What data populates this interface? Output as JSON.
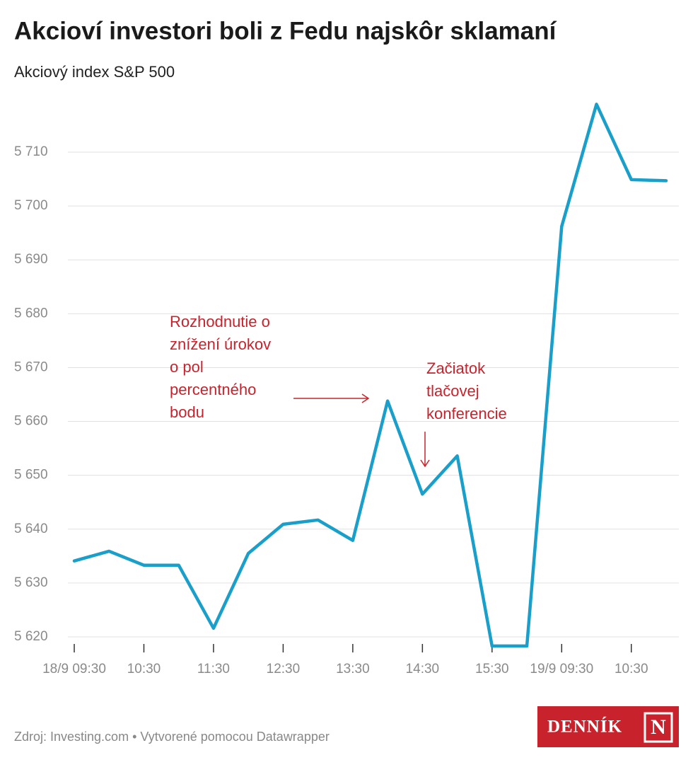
{
  "chart_data": {
    "type": "line",
    "title": "Akcioví investori boli z Fedu najskôr sklamaní",
    "subtitle": "Akciový index S&P 500",
    "categories": [
      "18/9 09:30",
      null,
      "10:30",
      null,
      "11:30",
      null,
      "12:30",
      null,
      "13:30",
      null,
      "14:30",
      null,
      "15:30",
      null,
      "19/9 09:30",
      null,
      "10:30",
      null
    ],
    "series": [
      {
        "color": "#1a9fcb",
        "values": [
          5634.1,
          5635.9,
          5633.3,
          5633.3,
          5621.6,
          5635.5,
          5640.9,
          5641.7,
          5637.9,
          5663.8,
          5646.5,
          5653.6,
          5618.3,
          5618.3,
          5696.2,
          5718.9,
          5704.9,
          5704.7
        ]
      }
    ],
    "ylim": [
      5618,
      5720
    ],
    "yticks": [
      {
        "value": 5620,
        "label": "5 620"
      },
      {
        "value": 5630,
        "label": "5 630"
      },
      {
        "value": 5640,
        "label": "5 640"
      },
      {
        "value": 5650,
        "label": "5 650"
      },
      {
        "value": 5660,
        "label": "5 660"
      },
      {
        "value": 5670,
        "label": "5 670"
      },
      {
        "value": 5680,
        "label": "5 680"
      },
      {
        "value": 5690,
        "label": "5 690"
      },
      {
        "value": 5700,
        "label": "5 700"
      },
      {
        "value": 5710,
        "label": "5 710"
      }
    ],
    "grid": true,
    "annotations": [
      {
        "lines": [
          "Rozhodnutie o",
          "znížení úrokov",
          "o pol",
          "percentného",
          "bodu"
        ],
        "color": "#c8232c"
      },
      {
        "lines": [
          "Začiatok",
          "tlačovej",
          "konferencie"
        ],
        "color": "#c8232c"
      }
    ],
    "source": "Zdroj: Investing.com • Vytvorené pomocou Datawrapper",
    "logo": {
      "name": "DENNÍK",
      "letter": "N"
    }
  }
}
